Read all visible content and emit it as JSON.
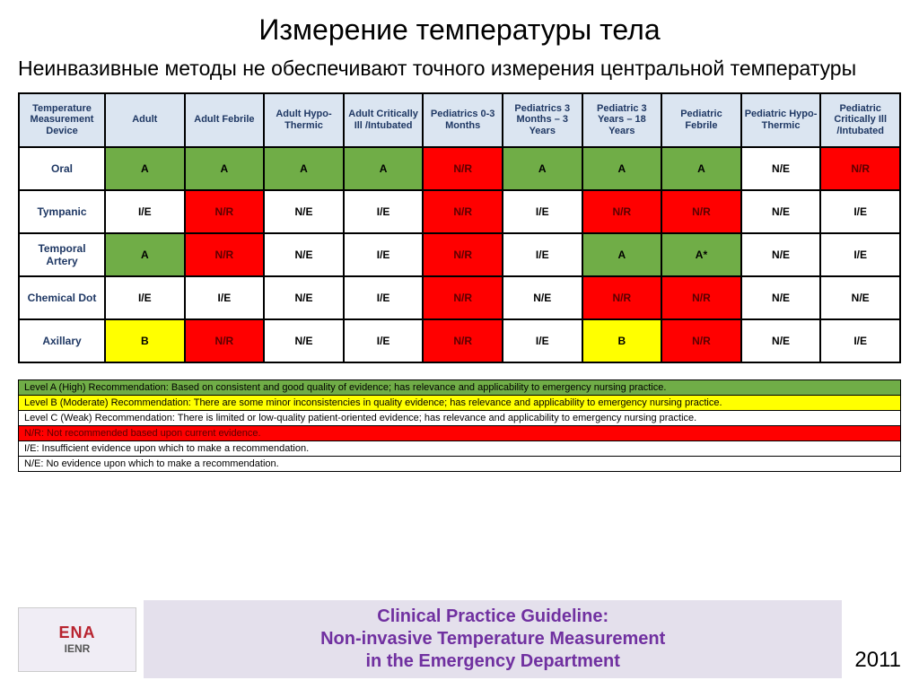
{
  "title": "Измерение температуры тела",
  "subtitle": "Неинвазивные методы не обеспечивают точного измерения центральной температуры",
  "colors": {
    "green": "#70ad47",
    "red": "#ff0000",
    "yellow": "#ffff00",
    "white": "#ffffff",
    "header_bg": "#dbe5f1",
    "header_fg": "#1f3864"
  },
  "table": {
    "columns": [
      "Temperature Measurement Device",
      "Adult",
      "Adult Febrile",
      "Adult Hypo-Thermic",
      "Adult Critically Ill /Intubated",
      "Pediatrics 0-3 Months",
      "Pediatrics 3 Months – 3 Years",
      "Pediatric 3 Years – 18 Years",
      "Pediatric Febrile",
      "Pediatric Hypo-Thermic",
      "Pediatric Critically Ill /Intubated"
    ],
    "rows": [
      {
        "label": "Oral",
        "cells": [
          {
            "v": "A",
            "c": "green"
          },
          {
            "v": "A",
            "c": "green"
          },
          {
            "v": "A",
            "c": "green"
          },
          {
            "v": "A",
            "c": "green"
          },
          {
            "v": "N/R",
            "c": "red"
          },
          {
            "v": "A",
            "c": "green"
          },
          {
            "v": "A",
            "c": "green"
          },
          {
            "v": "A",
            "c": "green"
          },
          {
            "v": "N/E",
            "c": "white"
          },
          {
            "v": "N/R",
            "c": "red"
          }
        ]
      },
      {
        "label": "Tympanic",
        "cells": [
          {
            "v": "I/E",
            "c": "white"
          },
          {
            "v": "N/R",
            "c": "red"
          },
          {
            "v": "N/E",
            "c": "white"
          },
          {
            "v": "I/E",
            "c": "white"
          },
          {
            "v": "N/R",
            "c": "red"
          },
          {
            "v": "I/E",
            "c": "white"
          },
          {
            "v": "N/R",
            "c": "red"
          },
          {
            "v": "N/R",
            "c": "red"
          },
          {
            "v": "N/E",
            "c": "white"
          },
          {
            "v": "I/E",
            "c": "white"
          }
        ]
      },
      {
        "label": "Temporal Artery",
        "cells": [
          {
            "v": "A",
            "c": "green"
          },
          {
            "v": "N/R",
            "c": "red"
          },
          {
            "v": "N/E",
            "c": "white"
          },
          {
            "v": "I/E",
            "c": "white"
          },
          {
            "v": "N/R",
            "c": "red"
          },
          {
            "v": "I/E",
            "c": "white"
          },
          {
            "v": "A",
            "c": "green"
          },
          {
            "v": "A*",
            "c": "green"
          },
          {
            "v": "N/E",
            "c": "white"
          },
          {
            "v": "I/E",
            "c": "white"
          }
        ]
      },
      {
        "label": "Chemical Dot",
        "cells": [
          {
            "v": "I/E",
            "c": "white"
          },
          {
            "v": "I/E",
            "c": "white"
          },
          {
            "v": "N/E",
            "c": "white"
          },
          {
            "v": "I/E",
            "c": "white"
          },
          {
            "v": "N/R",
            "c": "red"
          },
          {
            "v": "N/E",
            "c": "white"
          },
          {
            "v": "N/R",
            "c": "red"
          },
          {
            "v": "N/R",
            "c": "red"
          },
          {
            "v": "N/E",
            "c": "white"
          },
          {
            "v": "N/E",
            "c": "white"
          }
        ]
      },
      {
        "label": "Axillary",
        "cells": [
          {
            "v": "B",
            "c": "yellow"
          },
          {
            "v": "N/R",
            "c": "red"
          },
          {
            "v": "N/E",
            "c": "white"
          },
          {
            "v": "I/E",
            "c": "white"
          },
          {
            "v": "N/R",
            "c": "red"
          },
          {
            "v": "I/E",
            "c": "white"
          },
          {
            "v": "B",
            "c": "yellow"
          },
          {
            "v": "N/R",
            "c": "red"
          },
          {
            "v": "N/E",
            "c": "white"
          },
          {
            "v": "I/E",
            "c": "white"
          }
        ]
      }
    ]
  },
  "legend": [
    {
      "text": "Level A (High) Recommendation: Based on consistent and good quality of evidence; has relevance and applicability to emergency nursing practice.",
      "bg": "green",
      "fg": "#000000"
    },
    {
      "text": "Level B (Moderate) Recommendation: There are some minor inconsistencies in quality evidence; has relevance and applicability to emergency nursing practice.",
      "bg": "yellow",
      "fg": "#000000"
    },
    {
      "text": "Level C (Weak) Recommendation: There is limited or low-quality patient-oriented evidence; has relevance and applicability to emergency nursing practice.",
      "bg": "white",
      "fg": "#000000"
    },
    {
      "text": "N/R: Not recommended based upon current evidence.",
      "bg": "red",
      "fg": "#5a0000"
    },
    {
      "text": "I/E: Insufficient evidence upon which to make a recommendation.",
      "bg": "white",
      "fg": "#000000"
    },
    {
      "text": "N/E: No evidence upon which to make a recommendation.",
      "bg": "white",
      "fg": "#000000"
    }
  ],
  "footer": {
    "logo1": "ENA",
    "logo2": "IENR",
    "guideline_l1": "Clinical Practice Guideline:",
    "guideline_l2": "Non-invasive Temperature Measurement",
    "guideline_l3": "in the Emergency Department",
    "year": "2011"
  }
}
